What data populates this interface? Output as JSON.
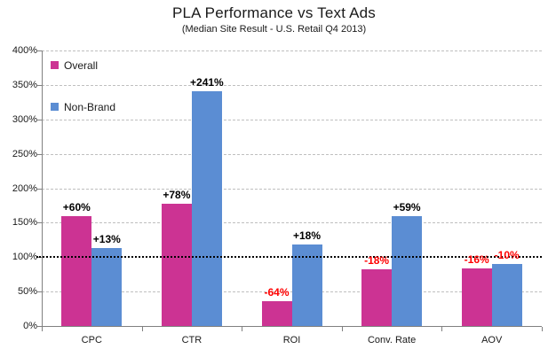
{
  "chart_data": {
    "type": "bar",
    "title": "PLA Performance vs Text Ads",
    "subtitle": "(Median Site Result - U.S. Retail Q4 2013)",
    "categories": [
      "CPC",
      "CTR",
      "ROI",
      "Conv. Rate",
      "AOV"
    ],
    "series": [
      {
        "name": "Overall",
        "color": "#CC3393",
        "values": [
          160,
          178,
          36,
          82,
          84
        ],
        "labels": [
          "+60%",
          "+78%",
          "-64%",
          "-18%",
          "-16%"
        ]
      },
      {
        "name": "Non-Brand",
        "color": "#5B8DD3",
        "values": [
          113,
          341,
          118,
          159,
          90
        ],
        "labels": [
          "+13%",
          "+241%",
          "+18%",
          "+59%",
          "-10%"
        ]
      }
    ],
    "ylim": [
      0,
      400
    ],
    "ytick_step": 50,
    "ytick_labels": [
      "0%",
      "50%",
      "100%",
      "150%",
      "200%",
      "250%",
      "300%",
      "350%",
      "400%"
    ],
    "reference_line": {
      "value": 100,
      "style": "dotted",
      "color": "#000000"
    },
    "label_colors": {
      "positive": "#000000",
      "negative": "#FF0000"
    },
    "grid": "horizontal-dashed",
    "legend_position": "top-left-inside"
  },
  "colors": {
    "gridline": "#BFBFBF",
    "axis": "#808080",
    "text": "#1A1A1A"
  }
}
